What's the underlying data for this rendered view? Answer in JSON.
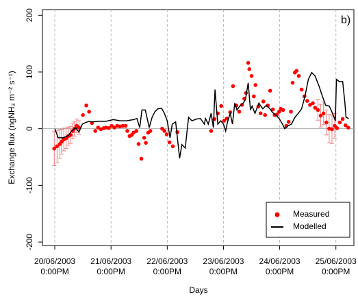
{
  "chart_data": {
    "type": "scatter",
    "annotation": "b)",
    "xlabel": "Days",
    "ylabel": "Exchange flux (ngNH₃ m⁻² s⁻¹)",
    "xlim": [
      20.28,
      25.82
    ],
    "ylim": [
      -206,
      210
    ],
    "xticks": [
      {
        "value": 20.5,
        "label": "20/06/2003 0:00PM"
      },
      {
        "value": 21.5,
        "label": "21/06/2003 0:00PM"
      },
      {
        "value": 22.5,
        "label": "22/06/2003 0:00PM"
      },
      {
        "value": 23.5,
        "label": "23/06/2003 0:00PM"
      },
      {
        "value": 24.5,
        "label": "24/06/2003 0:00PM"
      },
      {
        "value": 25.5,
        "label": "25/06/2003 0:00PM"
      }
    ],
    "yticks": [
      -200,
      -100,
      0,
      100,
      200
    ],
    "xgrid": true,
    "reference_line": 0,
    "legend": "bottom-right",
    "series": [
      {
        "name": "Measured",
        "mark": "point",
        "color": "#ff0000",
        "error_color": "#f08080",
        "x": [
          20.49,
          20.54,
          20.59,
          20.62,
          20.66,
          20.7,
          20.74,
          20.78,
          20.82,
          20.85,
          20.89,
          20.93,
          21.0,
          21.06,
          21.11,
          21.16,
          21.22,
          21.27,
          21.32,
          21.37,
          21.41,
          21.46,
          21.51,
          21.56,
          21.61,
          21.66,
          21.71,
          21.76,
          21.79,
          21.83,
          21.87,
          21.9,
          21.95,
          21.99,
          22.04,
          22.09,
          22.12,
          22.16,
          22.2,
          22.41,
          22.45,
          22.49,
          22.54,
          22.6,
          22.68,
          23.28,
          23.34,
          23.4,
          23.46,
          23.51,
          23.56,
          23.62,
          23.67,
          23.73,
          23.78,
          23.83,
          23.87,
          23.9,
          23.94,
          23.96,
          24.0,
          24.04,
          24.07,
          24.12,
          24.16,
          24.21,
          24.24,
          24.29,
          24.33,
          24.38,
          24.41,
          24.45,
          24.49,
          24.52,
          24.56,
          24.62,
          24.66,
          24.7,
          24.73,
          24.77,
          24.8,
          24.84,
          24.89,
          24.94,
          24.99,
          25.04,
          25.09,
          25.13,
          25.18,
          25.23,
          25.28,
          25.33,
          25.38,
          25.43,
          25.48,
          25.52,
          25.57,
          25.62,
          25.67,
          25.72
        ],
        "values": [
          -35,
          -31,
          -27,
          -23,
          -19,
          -17,
          -13,
          -11,
          -4,
          0,
          5,
          2,
          24,
          41,
          30,
          10,
          -4,
          2,
          -1,
          1,
          2,
          1,
          5,
          2,
          5,
          4,
          5,
          5,
          -4,
          -13,
          -11,
          -7,
          -4,
          -27,
          -53,
          -16,
          -25,
          -7,
          -4,
          0,
          -4,
          -10,
          -24,
          -31,
          -6,
          -4,
          17,
          27,
          40,
          14,
          18,
          29,
          75,
          41,
          30,
          42,
          53,
          63,
          116,
          105,
          93,
          57,
          77,
          39,
          27,
          48,
          24,
          41,
          67,
          34,
          24,
          25,
          30,
          35,
          33,
          5,
          12,
          30,
          81,
          99,
          102,
          93,
          69,
          57,
          49,
          42,
          45,
          37,
          33,
          23,
          27,
          11,
          0,
          -1,
          5,
          1,
          11,
          17,
          6,
          2
        ],
        "errors": [
          30,
          28,
          25,
          22,
          20,
          18,
          16,
          15,
          14,
          13,
          12,
          12,
          null,
          null,
          null,
          null,
          null,
          null,
          null,
          null,
          null,
          null,
          null,
          null,
          null,
          null,
          null,
          null,
          null,
          null,
          null,
          null,
          null,
          null,
          null,
          null,
          null,
          null,
          null,
          null,
          null,
          null,
          null,
          null,
          null,
          null,
          null,
          null,
          null,
          null,
          null,
          null,
          null,
          null,
          null,
          null,
          null,
          null,
          null,
          null,
          null,
          null,
          null,
          null,
          null,
          null,
          null,
          null,
          null,
          null,
          null,
          null,
          null,
          null,
          null,
          null,
          null,
          null,
          null,
          null,
          null,
          null,
          null,
          null,
          null,
          null,
          null,
          null,
          18,
          20,
          20,
          22,
          25,
          25,
          22,
          null,
          null,
          null,
          null,
          null
        ]
      },
      {
        "name": "Modelled",
        "mark": "line",
        "color": "#000000",
        "x": [
          20.5,
          20.56,
          20.65,
          20.74,
          20.8,
          20.87,
          20.93,
          20.99,
          21.05,
          21.11,
          21.17,
          21.29,
          21.41,
          21.54,
          21.66,
          21.78,
          21.9,
          21.96,
          22.01,
          22.05,
          22.11,
          22.18,
          22.23,
          22.28,
          22.33,
          22.4,
          22.45,
          22.5,
          22.55,
          22.59,
          22.65,
          22.72,
          22.76,
          22.82,
          22.88,
          22.94,
          23.02,
          23.09,
          23.16,
          23.18,
          23.23,
          23.28,
          23.32,
          23.35,
          23.4,
          23.45,
          23.5,
          23.54,
          23.57,
          23.62,
          23.66,
          23.7,
          23.74,
          23.79,
          23.85,
          23.89,
          23.94,
          23.98,
          24.01,
          24.06,
          24.13,
          24.2,
          24.26,
          24.32,
          24.37,
          24.43,
          24.49,
          24.55,
          24.59,
          24.65,
          24.71,
          24.77,
          24.83,
          24.89,
          24.95,
          25.01,
          25.07,
          25.13,
          25.2,
          25.26,
          25.32,
          25.38,
          25.44,
          25.49,
          25.51,
          25.56,
          25.62,
          25.66,
          25.68,
          25.73
        ],
        "values": [
          0,
          -16,
          -16,
          -12,
          -4,
          2,
          -6,
          8,
          11,
          13,
          12,
          13,
          13,
          16,
          14,
          14,
          16,
          18,
          2,
          33,
          33,
          2,
          20,
          30,
          35,
          36,
          27,
          14,
          -16,
          8,
          12,
          -52,
          -28,
          -34,
          20,
          14,
          17,
          18,
          8,
          18,
          8,
          27,
          2,
          69,
          8,
          14,
          8,
          -4,
          11,
          27,
          8,
          45,
          33,
          40,
          45,
          51,
          81,
          33,
          40,
          27,
          45,
          35,
          41,
          36,
          29,
          24,
          18,
          8,
          0,
          5,
          8,
          20,
          27,
          35,
          57,
          87,
          99,
          93,
          75,
          57,
          41,
          40,
          27,
          14,
          87,
          83,
          83,
          45,
          20,
          18
        ]
      }
    ]
  }
}
